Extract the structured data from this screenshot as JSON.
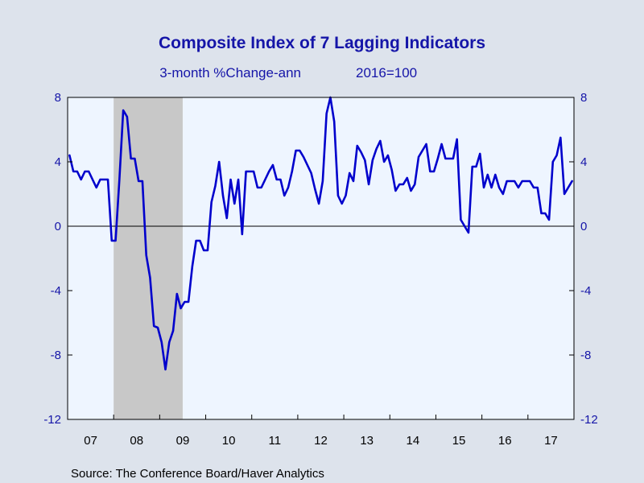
{
  "chart_data": {
    "type": "line",
    "title": "Composite Index of 7 Lagging Indicators",
    "subtitle": "3-month %Change-ann",
    "subtitle_note": "2016=100",
    "source": "Source:  The Conference Board/Haver Analytics",
    "x_tick_labels": [
      "07",
      "08",
      "09",
      "10",
      "11",
      "12",
      "13",
      "14",
      "15",
      "16",
      "17"
    ],
    "y_ticks": [
      8,
      4,
      0,
      -4,
      -8,
      -12
    ],
    "ylim": [
      -12,
      8
    ],
    "x_range": [
      "2007-01",
      "2017-12"
    ],
    "recession_shading": {
      "start": "2008-01",
      "end": "2009-06",
      "color": "#c8c8c8"
    },
    "zero_line": true,
    "grid": false,
    "colors": {
      "line": "#0000cc",
      "text_blue": "#1515a8",
      "plot_bg": "#eef5ff",
      "outer_bg": "#dde3ec"
    },
    "series": [
      {
        "start": "2007-01",
        "frequency": "monthly",
        "values": [
          4.4,
          3.4,
          3.4,
          2.9,
          3.4,
          3.4,
          2.9,
          2.4,
          2.9,
          2.9,
          2.9,
          -0.9,
          -0.9,
          2.9,
          7.2,
          6.8,
          4.2,
          4.2,
          2.8,
          2.8,
          -1.8,
          -3.2,
          -6.2,
          -6.3,
          -7.2,
          -8.9,
          -7.2,
          -6.5,
          -4.2,
          -5.1,
          -4.7,
          -4.7,
          -2.5,
          -0.9,
          -0.9,
          -1.5,
          -1.5,
          1.5,
          2.5,
          4.0,
          1.9,
          0.5,
          2.9,
          1.4,
          2.9,
          -0.5,
          3.4,
          3.4,
          3.4,
          2.4,
          2.4,
          2.9,
          3.4,
          3.8,
          2.9,
          2.9,
          1.9,
          2.4,
          3.4,
          4.7,
          4.7,
          4.3,
          3.8,
          3.3,
          2.3,
          1.4,
          2.8,
          7.0,
          8.0,
          6.5,
          1.9,
          1.4,
          1.9,
          3.3,
          2.8,
          5.0,
          4.6,
          4.1,
          2.6,
          4.1,
          4.8,
          5.3,
          4.0,
          4.4,
          3.5,
          2.2,
          2.6,
          2.6,
          3.0,
          2.2,
          2.6,
          4.3,
          4.7,
          5.1,
          3.4,
          3.4,
          4.2,
          5.1,
          4.2,
          4.2,
          4.2,
          5.4,
          0.4,
          0.0,
          -0.4,
          3.7,
          3.7,
          4.5,
          2.4,
          3.2,
          2.4,
          3.2,
          2.4,
          2.0,
          2.8,
          2.8,
          2.8,
          2.4,
          2.8,
          2.8,
          2.8,
          2.4,
          2.4,
          0.8,
          0.8,
          0.4,
          4.0,
          4.4,
          5.5,
          2.0,
          2.4,
          2.8
        ]
      }
    ]
  }
}
